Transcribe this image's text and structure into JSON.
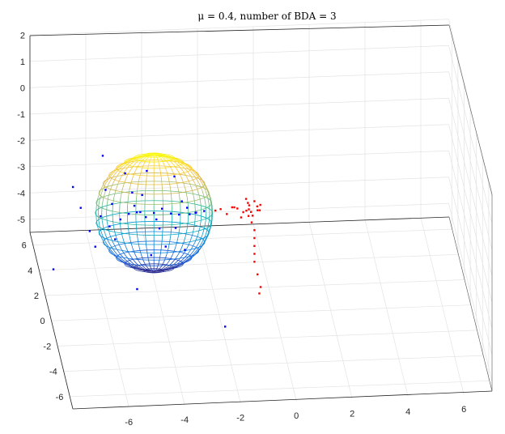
{
  "chart_data": {
    "type": "scatter",
    "title": "μ = 0.4, number of BDA = 3",
    "z_ticks": [
      "2",
      "1",
      "0",
      "-1",
      "-2",
      "-3",
      "-4",
      "-5"
    ],
    "y_ticks": [
      "6",
      "4",
      "2",
      "0",
      "-2",
      "-4",
      "-6"
    ],
    "x_ticks": [
      "-6",
      "-4",
      "-2",
      "0",
      "2",
      "4",
      "6"
    ],
    "xlim": [
      -8,
      7
    ],
    "ylim": [
      -7,
      7
    ],
    "zlim": [
      -5.5,
      2
    ],
    "grid": true,
    "sphere": {
      "center": [
        -4,
        3,
        -3
      ],
      "radius": 2.1,
      "colormap": "parula",
      "shown_as": "wireframe"
    },
    "series": [
      {
        "color": "#0000ff",
        "points": [
          [
            -6.6,
            3.2,
            -2.8
          ],
          [
            -6.3,
            3.0,
            -3.6
          ],
          [
            -5.9,
            3.1,
            -3.1
          ],
          [
            -5.6,
            2.9,
            -3.4
          ],
          [
            -5.7,
            3.3,
            -2.2
          ],
          [
            -4.9,
            3.0,
            -3.0
          ],
          [
            -4.6,
            3.1,
            -3.0
          ],
          [
            -4.3,
            2.9,
            -3.1
          ],
          [
            -4.0,
            3.0,
            -3.0
          ],
          [
            -3.7,
            3.1,
            -2.9
          ],
          [
            -3.4,
            2.9,
            -3.0
          ],
          [
            -3.1,
            3.0,
            -3.1
          ],
          [
            -2.8,
            3.1,
            -2.9
          ],
          [
            -2.5,
            2.9,
            -3.0
          ],
          [
            -5.2,
            3.0,
            -3.2
          ],
          [
            -4.8,
            2.8,
            -2.1
          ],
          [
            -4.4,
            3.2,
            -2.4
          ],
          [
            -3.6,
            2.8,
            -4.2
          ],
          [
            -3.2,
            3.2,
            -3.7
          ],
          [
            -4.1,
            3.0,
            -4.6
          ],
          [
            -5.0,
            3.3,
            -1.6
          ],
          [
            -3.3,
            2.7,
            -1.5
          ],
          [
            -6.9,
            3.0,
            -1.9
          ],
          [
            -2.2,
            3.0,
            -3.0
          ],
          [
            -2.5,
            3.1,
            -3.1
          ],
          [
            -4.7,
            3.0,
            -2.7
          ],
          [
            -3.9,
            3.1,
            -3.3
          ],
          [
            -5.4,
            2.9,
            -3.9
          ],
          [
            -2.9,
            2.9,
            -4.4
          ],
          [
            -7.6,
            3.0,
            -5.0
          ],
          [
            -5.8,
            3.3,
            -0.9
          ],
          [
            -4.3,
            2.6,
            -1.2
          ],
          [
            -4.8,
            1.2,
            -5.0
          ],
          [
            -2.0,
            -2.0,
            -5.0
          ],
          [
            -6.1,
            3.0,
            -4.2
          ],
          [
            -3.8,
            3.0,
            -3.6
          ],
          [
            -3.0,
            3.0,
            -2.6
          ],
          [
            -5.5,
            3.0,
            -2.6
          ],
          [
            -2.7,
            3.2,
            -3.2
          ],
          [
            -4.5,
            2.9,
            -2.9
          ]
        ]
      },
      {
        "color": "#ff0000",
        "points": [
          [
            -1.8,
            3.0,
            -3.0
          ],
          [
            -1.6,
            3.1,
            -3.0
          ],
          [
            -1.4,
            2.9,
            -3.1
          ],
          [
            -1.2,
            3.0,
            -2.9
          ],
          [
            -1.0,
            3.1,
            -3.0
          ],
          [
            -0.8,
            3.0,
            -3.1
          ],
          [
            -0.6,
            2.9,
            -2.8
          ],
          [
            -0.5,
            3.2,
            -3.2
          ],
          [
            -0.4,
            3.0,
            -2.7
          ],
          [
            -0.6,
            3.1,
            -3.3
          ],
          [
            -0.3,
            2.9,
            -3.0
          ],
          [
            -0.7,
            3.0,
            -2.6
          ],
          [
            -0.5,
            3.0,
            -3.5
          ],
          [
            -0.4,
            3.0,
            -3.8
          ],
          [
            -0.4,
            3.0,
            -4.1
          ],
          [
            -0.4,
            3.0,
            -4.4
          ],
          [
            -0.4,
            3.0,
            -4.7
          ],
          [
            -0.4,
            3.0,
            -5.0
          ],
          [
            -0.4,
            2.0,
            -5.0
          ],
          [
            -0.4,
            1.0,
            -5.0
          ],
          [
            -0.5,
            0.5,
            -5.0
          ],
          [
            -0.6,
            3.3,
            -2.9
          ],
          [
            -0.9,
            2.8,
            -3.2
          ],
          [
            -0.2,
            3.1,
            -3.1
          ],
          [
            -0.7,
            2.9,
            -3.0
          ],
          [
            -1.1,
            3.2,
            -3.0
          ],
          [
            -0.3,
            3.0,
            -2.9
          ],
          [
            -0.6,
            3.0,
            -3.0
          ],
          [
            -0.5,
            2.7,
            -3.1
          ],
          [
            -0.2,
            2.9,
            -2.8
          ]
        ]
      }
    ]
  }
}
